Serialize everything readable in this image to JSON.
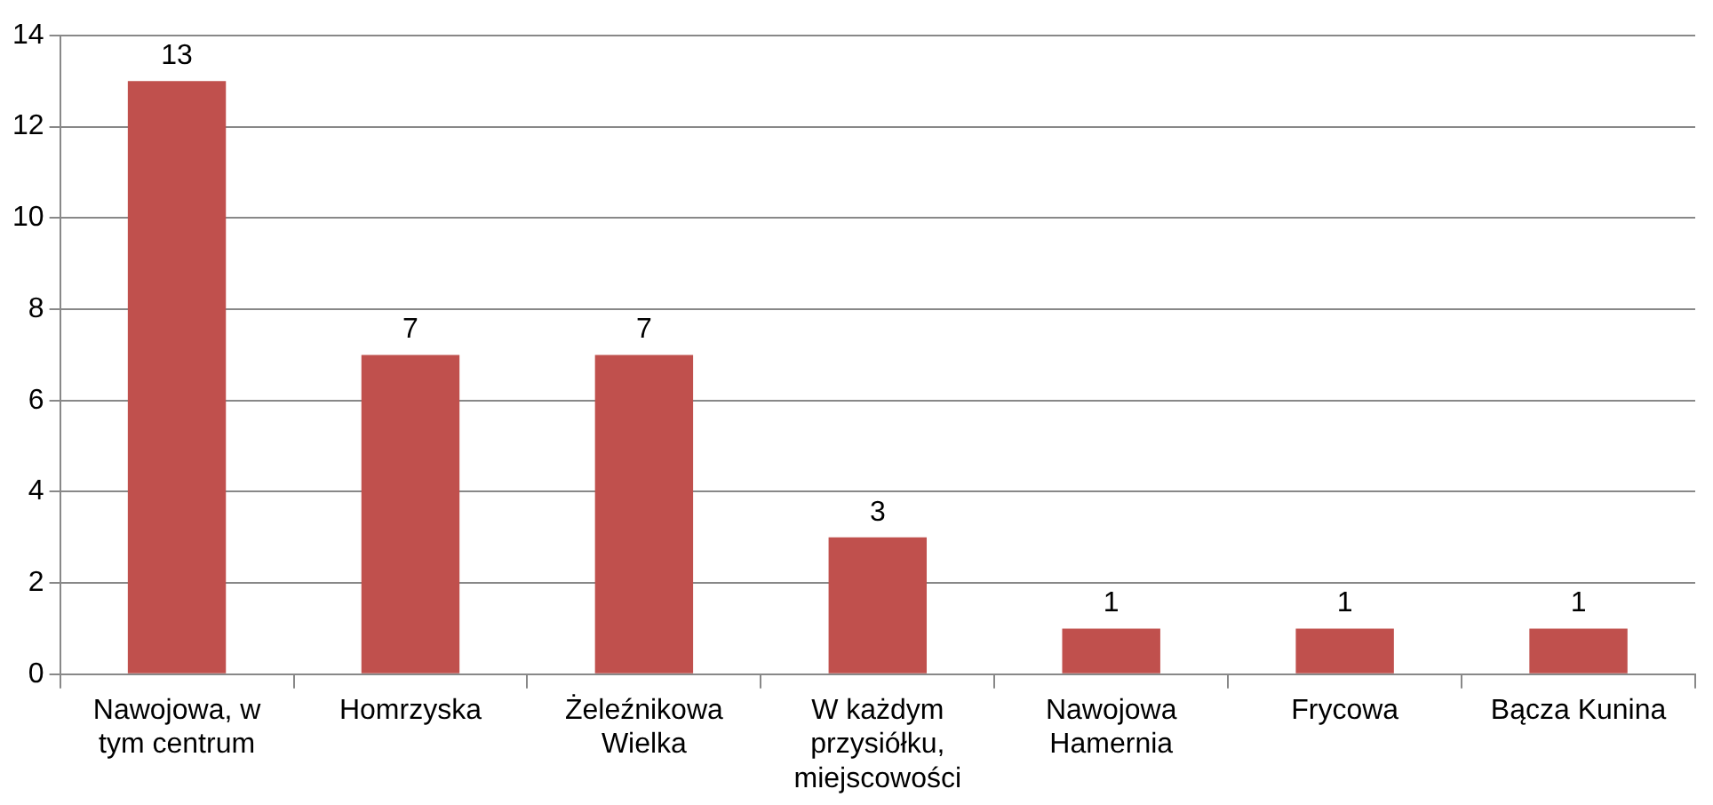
{
  "chart_data": {
    "type": "bar",
    "categories": [
      "Nawojowa, w tym centrum",
      "Homrzyska",
      "Żeleźnikowa Wielka",
      "W każdym przysiółku, miejscowości",
      "Nawojowa Hamernia",
      "Frycowa",
      "Bącza Kunina"
    ],
    "values": [
      13,
      7,
      7,
      3,
      1,
      1,
      1
    ],
    "color": "#c0504d",
    "ylim": [
      0,
      14
    ],
    "yticks": [
      0,
      2,
      4,
      6,
      8,
      10,
      12,
      14
    ],
    "grid": "y",
    "data_labels": true,
    "legend": false
  }
}
